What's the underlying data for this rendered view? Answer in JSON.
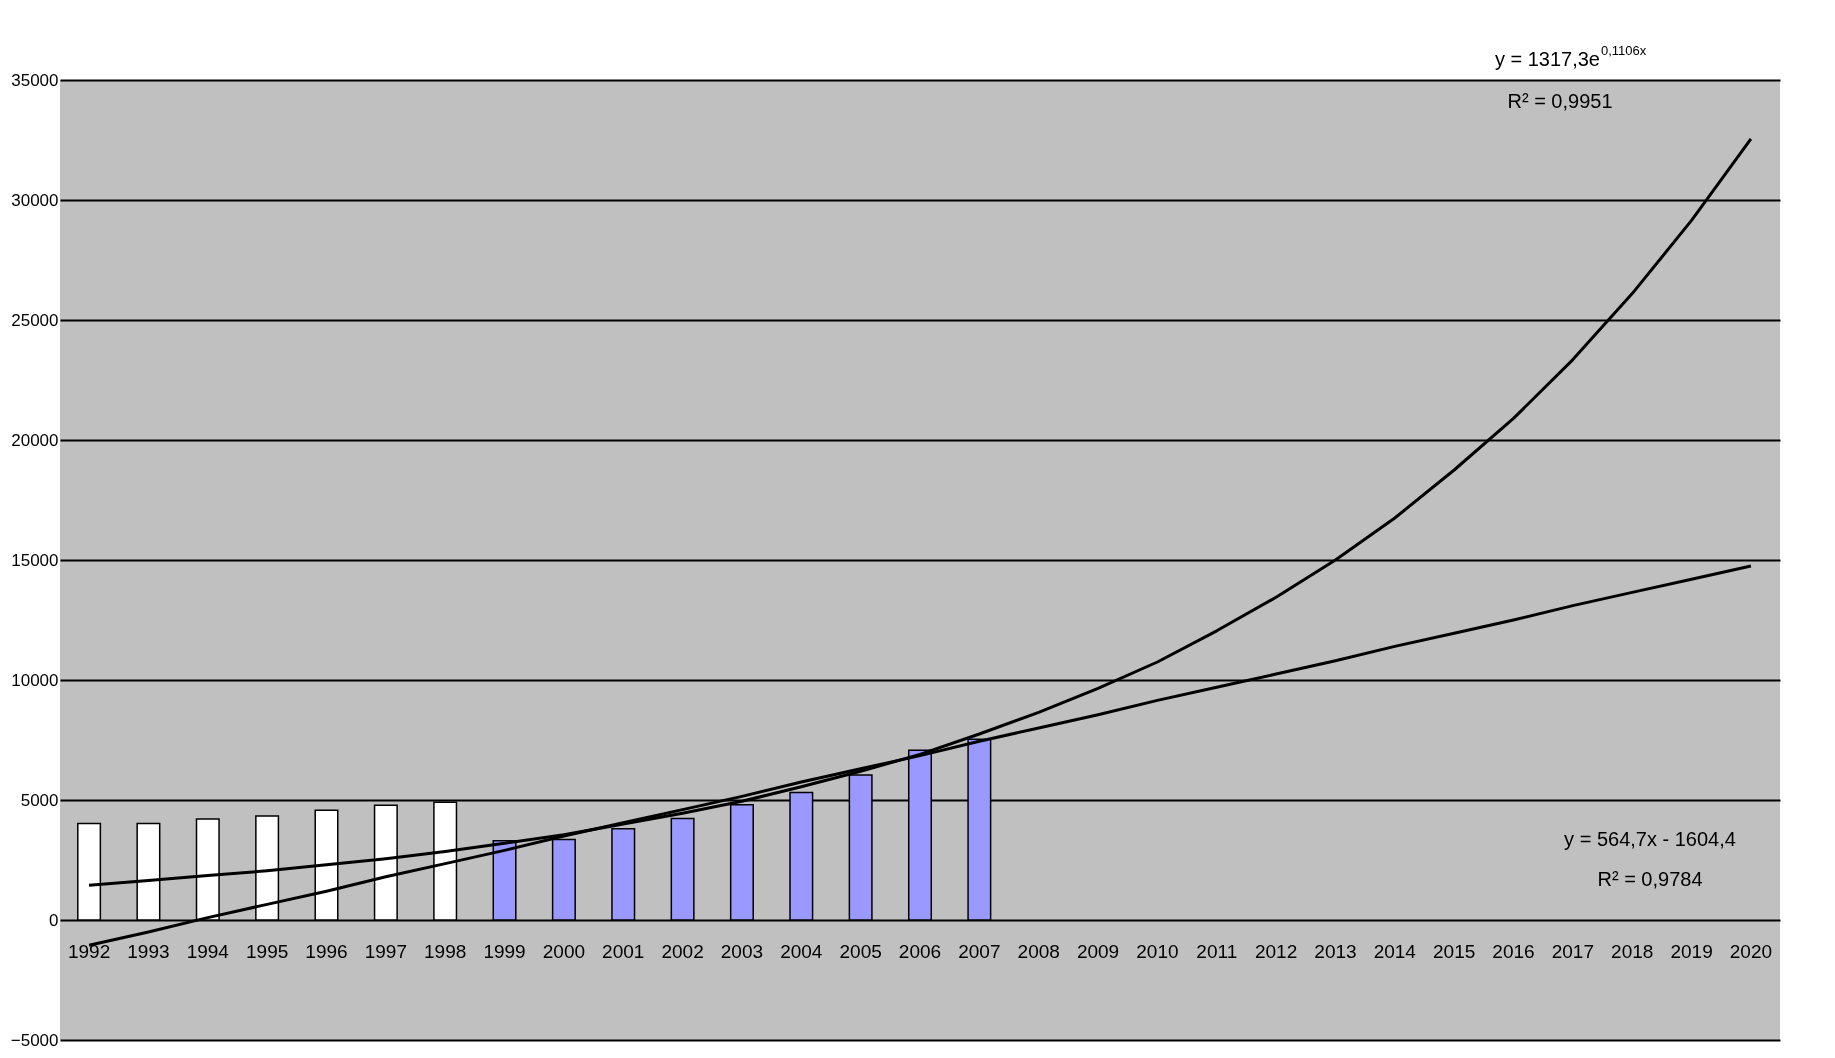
{
  "chart_data": {
    "type": "bar",
    "categories": [
      "1992",
      "1993",
      "1994",
      "1995",
      "1996",
      "1997",
      "1998",
      "1999",
      "2000",
      "2001",
      "2002",
      "2003",
      "2004",
      "2005",
      "2006",
      "2007",
      "2008",
      "2009",
      "2010",
      "2011",
      "2012",
      "2013",
      "2014",
      "2015",
      "2016",
      "2017",
      "2018",
      "2019",
      "2020"
    ],
    "series": [
      {
        "values": [
          4020,
          4020,
          4210,
          4330,
          4570,
          4780,
          4910,
          3300,
          3350,
          3800,
          4230,
          4800,
          5310,
          6040,
          7070,
          7530,
          null,
          null,
          null,
          null,
          null,
          null,
          null,
          null,
          null,
          null,
          null,
          null,
          null
        ],
        "colors": [
          "#ffffff",
          "#ffffff",
          "#ffffff",
          "#ffffff",
          "#ffffff",
          "#ffffff",
          "#ffffff",
          "#9999ff",
          "#9999ff",
          "#9999ff",
          "#9999ff",
          "#9999ff",
          "#9999ff",
          "#9999ff",
          "#9999ff",
          "#9999ff",
          "#9999ff",
          "#9999ff",
          "#9999ff",
          "#9999ff",
          "#9999ff",
          "#9999ff",
          "#9999ff",
          "#9999ff",
          "#9999ff",
          "#9999ff",
          "#9999ff",
          "#9999ff",
          "#9999ff"
        ]
      },
      {
        "type": "line",
        "color": "#000000",
        "values": [
          1450,
          1650,
          1850,
          2050,
          2300,
          2550,
          2850,
          3200,
          3550,
          4000,
          4450,
          4950,
          5550,
          6200,
          6900,
          7750,
          8650,
          9650,
          10750,
          12050,
          13450,
          15000,
          16750,
          18750,
          20900,
          23350,
          26100,
          29150,
          32550
        ]
      },
      {
        "type": "line",
        "color": "#000000",
        "values": [
          -1050,
          -500,
          100,
          650,
          1200,
          1800,
          2350,
          2900,
          3500,
          4050,
          4600,
          5150,
          5750,
          6300,
          6850,
          7450,
          8000,
          8550,
          9150,
          9700,
          10250,
          10800,
          11400,
          11950,
          12500,
          13100,
          13650,
          14200,
          14750
        ]
      }
    ],
    "ylim": [
      -5000,
      35000
    ],
    "yticks": [
      -5000,
      0,
      5000,
      10000,
      15000,
      20000,
      25000,
      30000,
      35000
    ],
    "grid": "y",
    "annotations": [
      "y = 1317,3e$^{0,1106x}$",
      "R² = 0,9951",
      "y = 564,7x - 1604,4",
      "R² = 0,9784"
    ]
  }
}
